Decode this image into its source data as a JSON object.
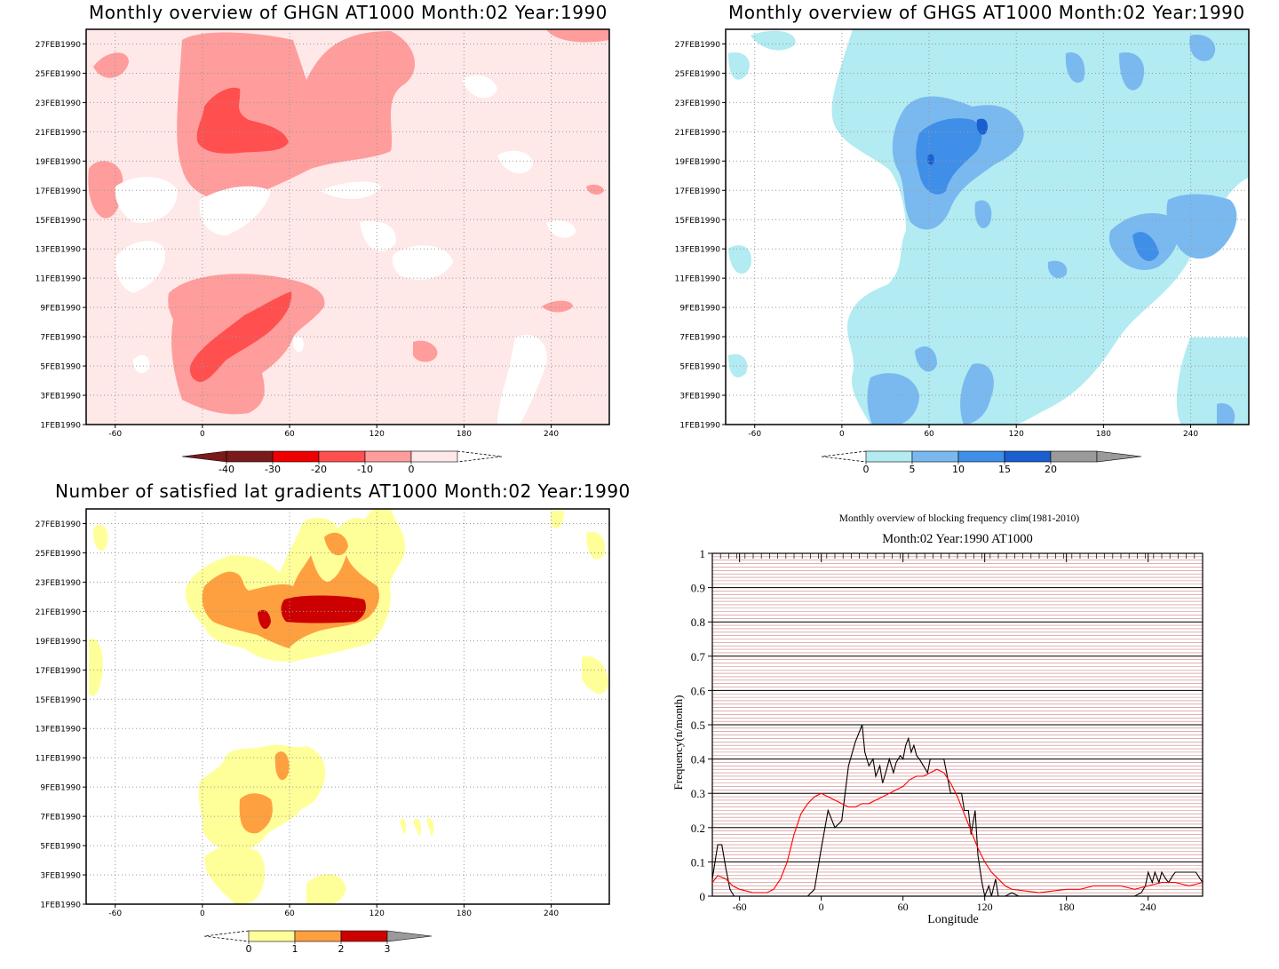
{
  "colors": {
    "ghgn": [
      "#7a1a1a",
      "#ee0000",
      "#ff4f4f",
      "#ff9c9c",
      "#ffe8e8"
    ],
    "ghgs": [
      "#b2ebf2",
      "#7ab9ef",
      "#3f8fe8",
      "#1a5fd0",
      "#9a9a9a"
    ],
    "lat": [
      "#ffff99",
      "#ffa040",
      "#cc0000",
      "#9a9a9a"
    ],
    "series_black": "#000000",
    "series_red": "#ff0000",
    "red_grid": "#cc8080"
  },
  "panels": {
    "ghgn": {
      "title": "Monthly overview of GHGN AT1000 Month:02 Year:1990",
      "yticks": [
        "27FEB1990",
        "25FEB1990",
        "23FEB1990",
        "21FEB1990",
        "19FEB1990",
        "17FEB1990",
        "15FEB1990",
        "13FEB1990",
        "11FEB1990",
        "9FEB1990",
        "7FEB1990",
        "5FEB1990",
        "3FEB1990",
        "1FEB1990"
      ],
      "xticks": [
        "-60",
        "0",
        "60",
        "120",
        "180",
        "240"
      ],
      "colorbar_labels": [
        "-40",
        "-30",
        "-20",
        "-10",
        "0"
      ]
    },
    "ghgs": {
      "title": "Monthly overview of GHGS AT1000 Month:02 Year:1990",
      "yticks": [
        "27FEB1990",
        "25FEB1990",
        "23FEB1990",
        "21FEB1990",
        "19FEB1990",
        "17FEB1990",
        "15FEB1990",
        "13FEB1990",
        "11FEB1990",
        "9FEB1990",
        "7FEB1990",
        "5FEB1990",
        "3FEB1990",
        "1FEB1990"
      ],
      "xticks": [
        "-60",
        "0",
        "60",
        "120",
        "180",
        "240"
      ],
      "colorbar_labels": [
        "0",
        "5",
        "10",
        "15",
        "20"
      ]
    },
    "lat": {
      "title": "Number of satisfied lat gradients AT1000 Month:02 Year:1990",
      "yticks": [
        "27FEB1990",
        "25FEB1990",
        "23FEB1990",
        "21FEB1990",
        "19FEB1990",
        "17FEB1990",
        "15FEB1990",
        "13FEB1990",
        "11FEB1990",
        "9FEB1990",
        "7FEB1990",
        "5FEB1990",
        "3FEB1990",
        "1FEB1990"
      ],
      "xticks": [
        "-60",
        "0",
        "60",
        "120",
        "180",
        "240"
      ],
      "colorbar_labels": [
        "0",
        "1",
        "2",
        "3"
      ]
    },
    "freq": {
      "title": "Monthly overview of blocking frequency clim(1981-2010)",
      "subtitle": "Month:02 Year:1990  AT1000",
      "xlabel": "Longitude",
      "ylabel": "Frequency(n/month)",
      "yticks": [
        "0",
        "0.1",
        "0.2",
        "0.3",
        "0.4",
        "0.5",
        "0.6",
        "0.7",
        "0.8",
        "0.9",
        "1"
      ],
      "xticks": [
        "-60",
        "0",
        "60",
        "120",
        "180",
        "240"
      ]
    }
  },
  "chart_data": [
    {
      "type": "heatmap",
      "title": "Monthly overview of GHGN AT1000 Month:02 Year:1990",
      "xlim": [
        -80,
        280
      ],
      "ylim": [
        "1FEB1990",
        "28FEB1990"
      ],
      "levels": [
        -40,
        -30,
        -20,
        -10,
        0
      ]
    },
    {
      "type": "heatmap",
      "title": "Monthly overview of GHGS AT1000 Month:02 Year:1990",
      "xlim": [
        -80,
        280
      ],
      "ylim": [
        "1FEB1990",
        "28FEB1990"
      ],
      "levels": [
        0,
        5,
        10,
        15,
        20
      ]
    },
    {
      "type": "heatmap",
      "title": "Number of satisfied lat gradients AT1000 Month:02 Year:1990",
      "xlim": [
        -80,
        280
      ],
      "ylim": [
        "1FEB1990",
        "28FEB1990"
      ],
      "levels": [
        0,
        1,
        2,
        3
      ]
    },
    {
      "type": "line",
      "title": "Monthly overview of blocking frequency clim(1981-2010)",
      "subtitle": "Month:02 Year:1990  AT1000",
      "xlabel": "Longitude",
      "ylabel": "Frequency(n/month)",
      "xlim": [
        -80,
        280
      ],
      "ylim": [
        0,
        1
      ],
      "series": [
        {
          "color": "#000000",
          "x": [
            -80,
            -76,
            -73,
            -70,
            -67,
            -64,
            -60,
            -55,
            -50,
            -40,
            -30,
            -20,
            -10,
            -5,
            0,
            5,
            10,
            15,
            20,
            25,
            30,
            32,
            35,
            38,
            40,
            43,
            45,
            48,
            50,
            53,
            55,
            58,
            60,
            62,
            64,
            66,
            68,
            70,
            72,
            75,
            78,
            80,
            85,
            90,
            95,
            100,
            103,
            105,
            108,
            110,
            113,
            115,
            118,
            120,
            123,
            125,
            128,
            130,
            135,
            140,
            145,
            150,
            155,
            160,
            170,
            180,
            200,
            220,
            230,
            235,
            238,
            240,
            243,
            245,
            248,
            250,
            253,
            255,
            258,
            260,
            265,
            270,
            275,
            280
          ],
          "y": [
            0.05,
            0.15,
            0.15,
            0.08,
            0.02,
            0.0,
            0.0,
            0.0,
            0.0,
            0.0,
            0.0,
            0.0,
            0.0,
            0.02,
            0.14,
            0.25,
            0.2,
            0.22,
            0.38,
            0.45,
            0.5,
            0.42,
            0.38,
            0.4,
            0.35,
            0.38,
            0.33,
            0.37,
            0.4,
            0.36,
            0.39,
            0.41,
            0.4,
            0.44,
            0.46,
            0.42,
            0.44,
            0.41,
            0.4,
            0.38,
            0.36,
            0.4,
            0.4,
            0.4,
            0.3,
            0.3,
            0.3,
            0.25,
            0.25,
            0.18,
            0.25,
            0.12,
            0.04,
            0.0,
            0.03,
            0.0,
            0.05,
            0.0,
            0.0,
            0.01,
            0.0,
            0.0,
            0.0,
            0.0,
            0.0,
            0.0,
            0.0,
            0.0,
            0.0,
            0.01,
            0.03,
            0.07,
            0.04,
            0.07,
            0.04,
            0.07,
            0.05,
            0.04,
            0.06,
            0.07,
            0.07,
            0.07,
            0.07,
            0.04
          ]
        },
        {
          "color": "#ff0000",
          "x": [
            -80,
            -76,
            -70,
            -65,
            -60,
            -55,
            -50,
            -45,
            -40,
            -35,
            -30,
            -25,
            -20,
            -15,
            -10,
            -5,
            0,
            5,
            10,
            15,
            20,
            25,
            30,
            35,
            40,
            45,
            50,
            55,
            60,
            65,
            70,
            75,
            80,
            85,
            90,
            95,
            100,
            105,
            110,
            115,
            120,
            125,
            130,
            135,
            140,
            150,
            160,
            170,
            180,
            190,
            200,
            210,
            220,
            230,
            240,
            250,
            260,
            270,
            280
          ],
          "y": [
            0.04,
            0.06,
            0.05,
            0.03,
            0.02,
            0.015,
            0.01,
            0.01,
            0.01,
            0.02,
            0.05,
            0.1,
            0.18,
            0.24,
            0.27,
            0.29,
            0.3,
            0.29,
            0.28,
            0.27,
            0.26,
            0.26,
            0.27,
            0.27,
            0.28,
            0.29,
            0.3,
            0.31,
            0.32,
            0.34,
            0.35,
            0.35,
            0.36,
            0.37,
            0.36,
            0.33,
            0.29,
            0.24,
            0.19,
            0.14,
            0.1,
            0.07,
            0.05,
            0.03,
            0.02,
            0.015,
            0.01,
            0.015,
            0.02,
            0.02,
            0.03,
            0.03,
            0.03,
            0.02,
            0.03,
            0.04,
            0.04,
            0.03,
            0.04
          ]
        }
      ]
    }
  ]
}
